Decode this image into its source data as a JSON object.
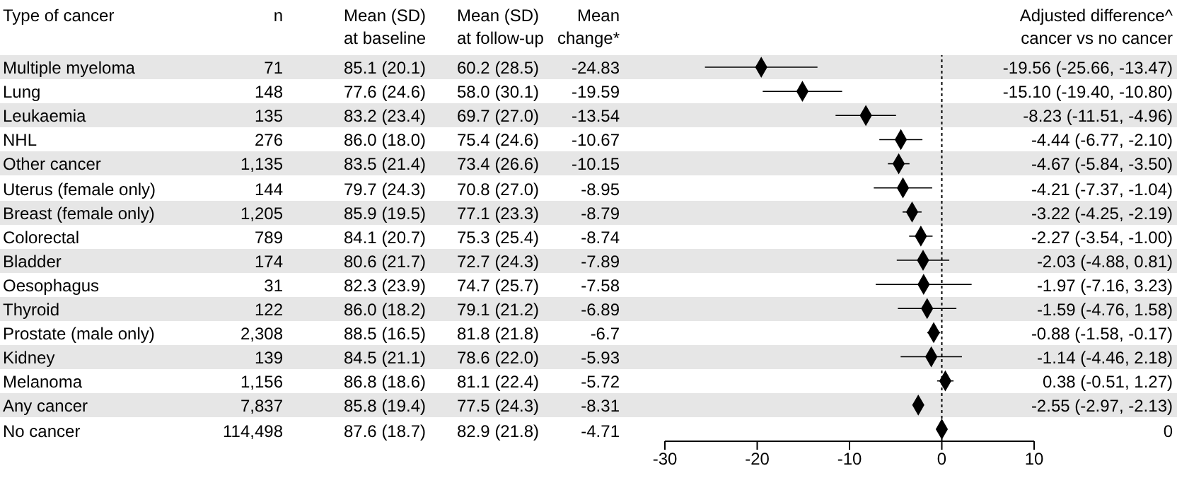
{
  "chart_data": [
    {
      "type": "other",
      "categories": [
        "Type of cancer",
        "n",
        "Mean (SD)\nat baseline",
        "Mean (SD)\nat follow-up",
        "Mean\nchange*"
      ],
      "y_categories": [
        "Multiple myeloma",
        "Lung",
        "Leukaemia",
        "NHL",
        "Other cancer",
        "Uterus (female only)",
        "Breast (female only)",
        "Colorectal",
        "Bladder",
        "Oesophagus",
        "Thyroid",
        "Prostate (male only)",
        "Kidney",
        "Melanoma",
        "Any cancer",
        "No cancer"
      ],
      "cell_labels": [
        [
          "71",
          "85.1 (20.1)",
          "60.2 (28.5)",
          "-24.83"
        ],
        [
          "148",
          "77.6 (24.6)",
          "58.0 (30.1)",
          "-19.59"
        ],
        [
          "135",
          "83.2 (23.4)",
          "69.7 (27.0)",
          "-13.54"
        ],
        [
          "276",
          "86.0 (18.0)",
          "75.4 (24.6)",
          "-10.67"
        ],
        [
          "1,135",
          "83.5 (21.4)",
          "73.4 (26.6)",
          "-10.15"
        ],
        [
          "144",
          "79.7 (24.3)",
          "70.8 (27.0)",
          "-8.95"
        ],
        [
          "1,205",
          "85.9 (19.5)",
          "77.1 (23.3)",
          "-8.79"
        ],
        [
          "789",
          "84.1 (20.7)",
          "75.3 (25.4)",
          "-8.74"
        ],
        [
          "174",
          "80.6 (21.7)",
          "72.7 (24.3)",
          "-7.89"
        ],
        [
          "31",
          "82.3 (23.9)",
          "74.7 (25.7)",
          "-7.58"
        ],
        [
          "122",
          "86.0 (18.2)",
          "79.1 (21.2)",
          "-6.89"
        ],
        [
          "2,308",
          "88.5 (16.5)",
          "81.8 (21.8)",
          "-6.7"
        ],
        [
          "139",
          "84.5 (21.1)",
          "78.6 (22.0)",
          "-5.93"
        ],
        [
          "1,156",
          "86.8 (18.6)",
          "81.1 (22.4)",
          "-5.72"
        ],
        [
          "7,837",
          "85.8 (19.4)",
          "77.5 (24.3)",
          "-8.31"
        ],
        [
          "114,498",
          "87.6 (18.7)",
          "82.9 (21.8)",
          "-4.71"
        ]
      ]
    },
    {
      "type": "scatter",
      "orientation": "horizontal",
      "color": "#000000",
      "marker": "diamond",
      "grid": false,
      "tick_labels": "x",
      "categories": [
        null,
        null,
        null,
        null,
        null,
        null,
        null,
        null,
        null,
        null,
        null,
        null,
        null,
        null,
        null,
        null
      ],
      "values": [
        -19.56,
        -15.1,
        -8.23,
        -4.44,
        -4.67,
        -4.21,
        -3.22,
        -2.27,
        -2.03,
        -1.97,
        -1.59,
        -0.88,
        -1.14,
        0.38,
        -2.55,
        0
      ],
      "errors": [
        [
          -25.66,
          -13.47
        ],
        [
          -19.4,
          -10.8
        ],
        [
          -11.51,
          -4.96
        ],
        [
          -6.77,
          -2.1
        ],
        [
          -5.84,
          -3.5
        ],
        [
          -7.37,
          -1.04
        ],
        [
          -4.25,
          -2.19
        ],
        [
          -3.54,
          -1.0
        ],
        [
          -4.88,
          0.81
        ],
        [
          -7.16,
          3.23
        ],
        [
          -4.76,
          1.58
        ],
        [
          -1.58,
          -0.17
        ],
        [
          -4.46,
          2.18
        ],
        [
          -0.51,
          1.27
        ],
        [
          -2.97,
          -2.13
        ],
        null
      ],
      "value_labels": [
        "-19.56 (-25.66, -13.47)",
        "-15.10 (-19.40, -10.80)",
        "-8.23 (-11.51, -4.96)",
        "-4.44 (-6.77, -2.10)",
        "-4.67 (-5.84, -3.50)",
        "-4.21 (-7.37, -1.04)",
        "-3.22 (-4.25, -2.19)",
        "-2.27 (-3.54, -1.00)",
        "-2.03 (-4.88, 0.81)",
        "-1.97 (-7.16, 3.23)",
        "-1.59 (-4.76, 1.58)",
        "-0.88 (-1.58, -0.17)",
        "-1.14 (-4.46, 2.18)",
        "0.38 (-0.51, 1.27)",
        "-2.55 (-2.97, -2.13)",
        "0"
      ],
      "xlim": [
        -30,
        10
      ],
      "xticks": [
        -30,
        -20,
        -10,
        0,
        10
      ],
      "ref_lines": [
        {
          "axis": "x",
          "value": 0,
          "line_style": "dotted",
          "color": "#000000"
        }
      ],
      "annotations": [
        "Adjusted difference^\ncancer vs no cancer"
      ]
    }
  ]
}
